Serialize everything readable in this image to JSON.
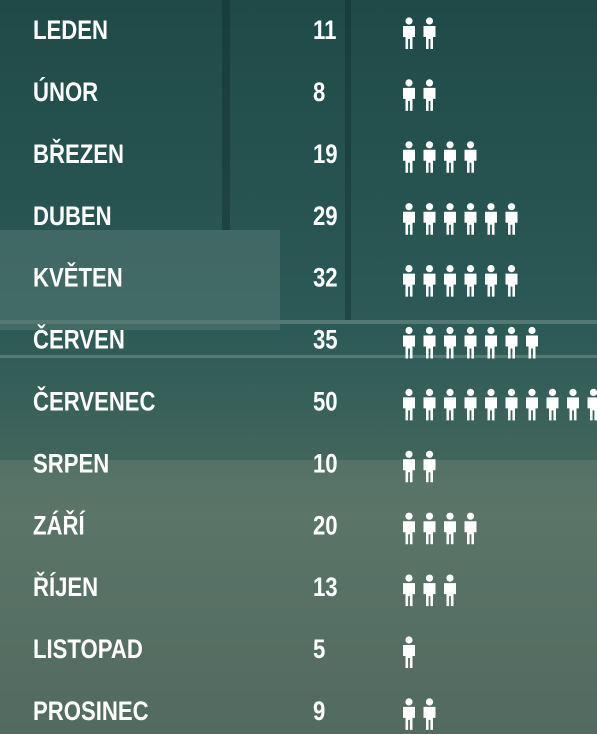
{
  "chart_data": {
    "type": "pictogram",
    "categories": [
      "LEDEN",
      "ÚNOR",
      "BŘEZEN",
      "DUBEN",
      "KVĚTEN",
      "ČERVEN",
      "ČERVENEC",
      "SRPEN",
      "ZÁŘÍ",
      "ŘÍJEN",
      "LISTOPAD",
      "PROSINEC"
    ],
    "values": [
      11,
      8,
      19,
      29,
      32,
      35,
      50,
      10,
      20,
      13,
      5,
      9
    ],
    "color": "#ffffff"
  }
}
